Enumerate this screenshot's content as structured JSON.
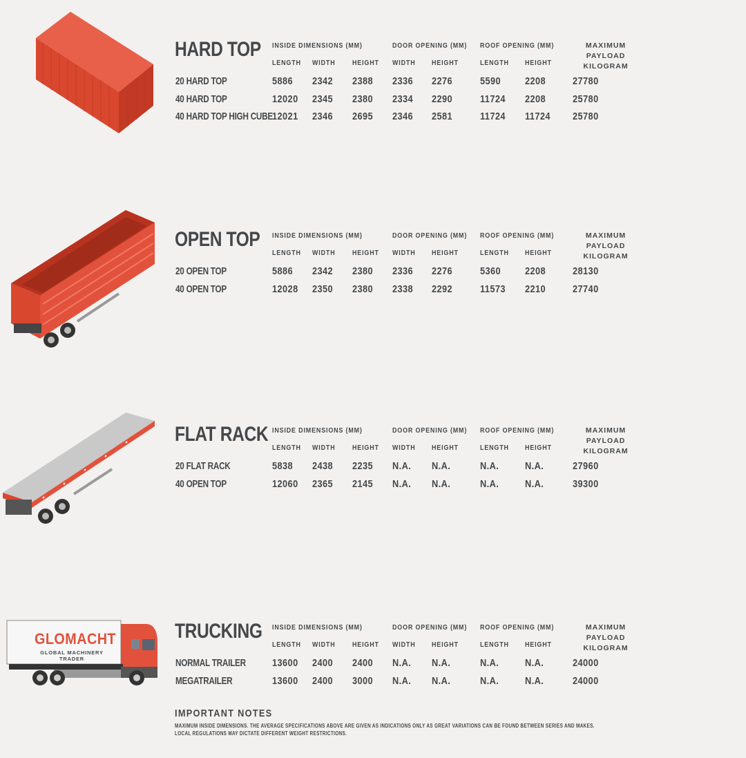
{
  "column_headers": {
    "inside_dimensions": "INSIDE DIMENSIONS (MM)",
    "door_opening": "DOOR OPENING (MM)",
    "roof_opening": "ROOF OPENING (MM)",
    "payload_line1": "MAXIMUM PAYLOAD",
    "payload_line2": "KILOGRAM",
    "sub": [
      "LENGTH",
      "WIDTH",
      "HEIGHT",
      "WIDTH",
      "HEIGHT",
      "LENGTH",
      "HEIGHT"
    ]
  },
  "sections": [
    {
      "title": "HARD TOP",
      "rows": [
        [
          "20 HARD TOP",
          "5886",
          "2342",
          "2388",
          "2336",
          "2276",
          "5590",
          "2208",
          "27780"
        ],
        [
          "40 HARD TOP",
          "12020",
          "2345",
          "2380",
          "2334",
          "2290",
          "11724",
          "2208",
          "25780"
        ],
        [
          "40 HARD TOP HIGH CUBE",
          "12021",
          "2346",
          "2695",
          "2346",
          "2581",
          "11724",
          "11724",
          "25780"
        ]
      ]
    },
    {
      "title": "OPEN TOP",
      "rows": [
        [
          "20 OPEN TOP",
          "5886",
          "2342",
          "2380",
          "2336",
          "2276",
          "5360",
          "2208",
          "28130"
        ],
        [
          "40 OPEN TOP",
          "12028",
          "2350",
          "2380",
          "2338",
          "2292",
          "11573",
          "2210",
          "27740"
        ]
      ]
    },
    {
      "title": "FLAT RACK",
      "rows": [
        [
          "20 FLAT RACK",
          "5838",
          "2438",
          "2235",
          "N.A.",
          "N.A.",
          "N.A.",
          "N.A.",
          "27960"
        ],
        [
          "40 OPEN TOP",
          "12060",
          "2365",
          "2145",
          "N.A.",
          "N.A.",
          "N.A.",
          "N.A.",
          "39300"
        ]
      ]
    },
    {
      "title": "TRUCKING",
      "rows": [
        [
          "NORMAL TRAILER",
          "13600",
          "2400",
          "2400",
          "N.A.",
          "N.A.",
          "N.A.",
          "N.A.",
          "24000"
        ],
        [
          "MEGATRAILER",
          "13600",
          "2400",
          "3000",
          "N.A.",
          "N.A.",
          "N.A.",
          "N.A.",
          "24000"
        ]
      ]
    }
  ],
  "truck_logo": {
    "brand": "GLOMACHT",
    "tagline": "GLOBAL MACHINERY TRADER"
  },
  "notes": {
    "title": "IMPORTANT NOTES",
    "line1": "MAXIMUM INSIDE DIMENSIONS. THE AVERAGE SPECIFICATIONS ABOVE ARE GIVEN AS INDICATIONS ONLY AS GREAT VARIATIONS CAN BE FOUND BETWEEN SERIES AND MAKES.",
    "line2": "LOCAL REGULATIONS MAY DICTATE DIFFERENT WEIGHT RESTRICTIONS."
  },
  "colors": {
    "text": "#45474a",
    "container_red": "#e2513b",
    "background": "#f2f1ef"
  }
}
